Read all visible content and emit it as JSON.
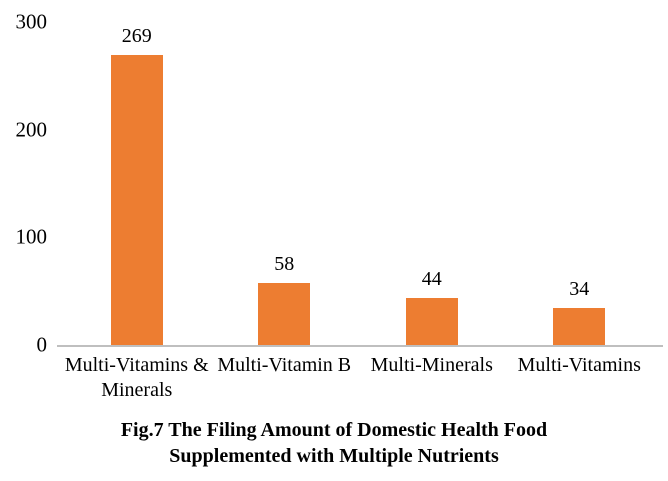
{
  "chart_data": {
    "type": "bar",
    "title": "Fig.7 The Filing Amount of Domestic Health Food Supplemented with Multiple Nutrients",
    "title_lines": [
      "Fig.7 The Filing Amount of Domestic Health Food",
      "Supplemented with Multiple Nutrients"
    ],
    "categories": [
      "Multi-Vitamins & Minerals",
      "Multi-Vitamin B",
      "Multi-Minerals",
      "Multi-Vitamins"
    ],
    "category_labels": [
      "Multi-Vitamins &\nMinerals",
      "Multi-Vitamin B",
      "Multi-Minerals",
      "Multi-Vitamins"
    ],
    "values": [
      269,
      58,
      44,
      34
    ],
    "data_labels": [
      "269",
      "58",
      "44",
      "34"
    ],
    "xlabel": "",
    "ylabel": "",
    "ylim": [
      0,
      300
    ],
    "yticks": [
      0,
      100,
      200,
      300
    ],
    "grid": false,
    "legend": "none",
    "bar_color": "#ED7D31",
    "axis_line_color": "#BFBFBF",
    "text_color": "#000000",
    "background_color": "#FFFFFF"
  }
}
